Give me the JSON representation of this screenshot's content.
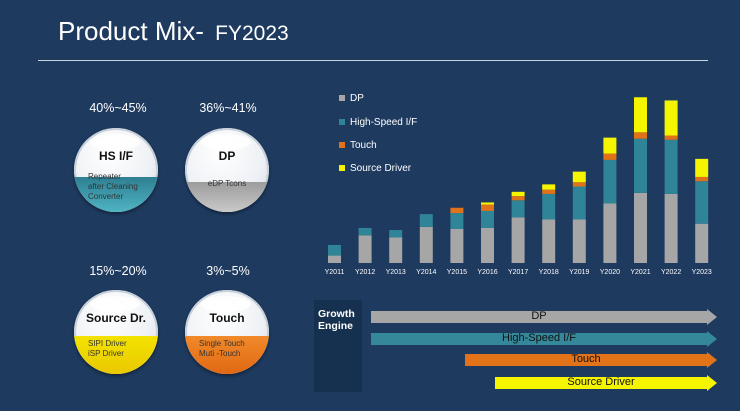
{
  "slide": {
    "title": "Product Mix- ",
    "title_year": "FY2023"
  },
  "products": [
    {
      "pct": "40%~45%",
      "name": "HS I/F",
      "desc": [
        "Repeater",
        "after Cleaning",
        "Converter"
      ],
      "color": "#3a93a3"
    },
    {
      "pct": "36%~41%",
      "name": "DP",
      "desc": [
        "eDP Tcons"
      ],
      "color": "#b9b9b9"
    },
    {
      "pct": "15%~20%",
      "name": "Source Dr.",
      "desc": [
        "SIPI Driver",
        "iSP Driver"
      ],
      "color": "#f5e400"
    },
    {
      "pct": "3%~5%",
      "name": "Touch",
      "desc": [
        "Single Touch",
        "Muti -Touch"
      ],
      "color": "#e87522"
    }
  ],
  "growth_engine": {
    "label": "Growth Engine",
    "arrows": [
      {
        "label": "DP",
        "color": "#a6a6a6"
      },
      {
        "label": "High-Speed I/F",
        "color": "#34889a"
      },
      {
        "label": "Touch",
        "color": "#e27319"
      },
      {
        "label": "Source Driver",
        "color": "#f5f500"
      }
    ]
  },
  "chart_data": {
    "type": "bar",
    "stacked": true,
    "categories": [
      "Y2011",
      "Y2012",
      "Y2013",
      "Y2014",
      "Y2015",
      "Y2016",
      "Y2017",
      "Y2018",
      "Y2019",
      "Y2020",
      "Y2021",
      "Y2022",
      "Y2023"
    ],
    "series": [
      {
        "name": "DP",
        "color": "#a6a6a6",
        "values": [
          7,
          26,
          24,
          34,
          32,
          33,
          43,
          41,
          41,
          56,
          66,
          65,
          37
        ]
      },
      {
        "name": "High-Speed I/F",
        "color": "#2f8497",
        "values": [
          10,
          7,
          7,
          12,
          15,
          16,
          16,
          24,
          31,
          41,
          51,
          51,
          40
        ]
      },
      {
        "name": "Touch",
        "color": "#e07319",
        "values": [
          0,
          0,
          0,
          0,
          5,
          6,
          4,
          4,
          4,
          6,
          6,
          4,
          4
        ]
      },
      {
        "name": "Source Driver",
        "color": "#f5f500",
        "values": [
          0,
          0,
          0,
          0,
          0,
          2,
          4,
          5,
          10,
          15,
          33,
          33,
          17
        ]
      }
    ],
    "ylim": [
      0,
      160
    ],
    "legend": "top-left"
  }
}
